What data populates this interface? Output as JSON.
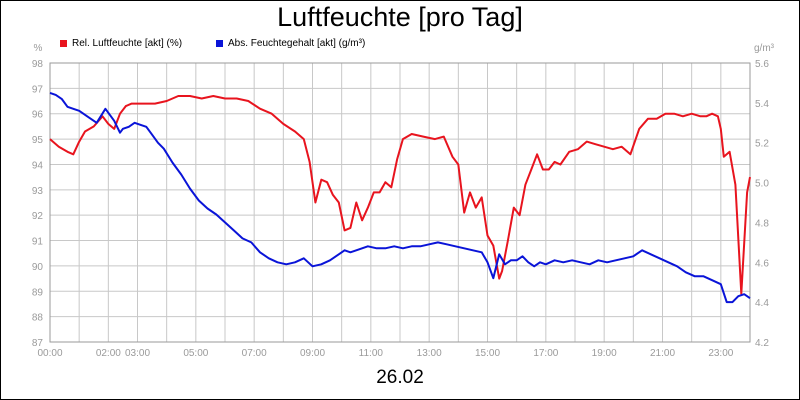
{
  "title": "Luftfeuchte [pro Tag]",
  "footer": "26.02",
  "colors": {
    "rel": "#e8141e",
    "abs": "#0a14d8",
    "grid": "#c8c8c8",
    "tick": "#9a9a9a"
  },
  "chart_data": {
    "type": "line",
    "title": "Luftfeuchte [pro Tag]",
    "xlabel": "26.02",
    "x_ticks": [
      "00:00",
      "02:00",
      "03:00",
      "05:00",
      "07:00",
      "09:00",
      "11:00",
      "13:00",
      "15:00",
      "17:00",
      "19:00",
      "21:00",
      "23:00"
    ],
    "x_tick_hours": [
      0,
      2,
      3,
      5,
      7,
      9,
      11,
      13,
      15,
      17,
      19,
      21,
      23
    ],
    "xlim": [
      0,
      24
    ],
    "y_left": {
      "unit": "%",
      "ylim": [
        87,
        98
      ],
      "ticks": [
        87,
        88,
        89,
        90,
        91,
        92,
        93,
        94,
        95,
        96,
        97,
        98
      ]
    },
    "y_right": {
      "unit": "g/m³",
      "ylim": [
        4.2,
        5.6
      ],
      "ticks": [
        "4.2",
        "4.4",
        "4.6",
        "4.8",
        "5.0",
        "5.2",
        "5.4",
        "5.6"
      ]
    },
    "grid": true,
    "legend_position": "top-left",
    "series": [
      {
        "name": "Rel. Luftfeuchte [akt] (%)",
        "axis": "left",
        "x": [
          0,
          0.3,
          0.6,
          0.8,
          1.0,
          1.2,
          1.5,
          1.8,
          2.0,
          2.2,
          2.4,
          2.6,
          2.8,
          3.0,
          3.3,
          3.6,
          4.0,
          4.4,
          4.8,
          5.2,
          5.6,
          6.0,
          6.4,
          6.8,
          7.2,
          7.6,
          8.0,
          8.4,
          8.7,
          8.9,
          9.1,
          9.3,
          9.5,
          9.7,
          9.9,
          10.1,
          10.3,
          10.5,
          10.7,
          10.9,
          11.1,
          11.3,
          11.5,
          11.7,
          11.9,
          12.1,
          12.4,
          12.8,
          13.2,
          13.5,
          13.8,
          14.0,
          14.2,
          14.4,
          14.6,
          14.8,
          15.0,
          15.2,
          15.4,
          15.5,
          15.7,
          15.9,
          16.1,
          16.3,
          16.5,
          16.7,
          16.9,
          17.1,
          17.3,
          17.5,
          17.8,
          18.1,
          18.4,
          18.7,
          19.0,
          19.3,
          19.6,
          19.9,
          20.2,
          20.5,
          20.8,
          21.1,
          21.4,
          21.7,
          22.0,
          22.3,
          22.5,
          22.7,
          22.9,
          23.0,
          23.1,
          23.3,
          23.5,
          23.7,
          23.9,
          24.0
        ],
        "values": [
          95.0,
          94.7,
          94.5,
          94.4,
          94.9,
          95.3,
          95.5,
          95.9,
          95.6,
          95.4,
          96.0,
          96.3,
          96.4,
          96.4,
          96.4,
          96.4,
          96.5,
          96.7,
          96.7,
          96.6,
          96.7,
          96.6,
          96.6,
          96.5,
          96.2,
          96.0,
          95.6,
          95.3,
          95.0,
          94.1,
          92.5,
          93.4,
          93.3,
          92.8,
          92.5,
          91.4,
          91.5,
          92.5,
          91.8,
          92.3,
          92.9,
          92.9,
          93.3,
          93.1,
          94.2,
          95.0,
          95.2,
          95.1,
          95.0,
          95.1,
          94.3,
          94.0,
          92.1,
          92.9,
          92.3,
          92.7,
          91.2,
          90.8,
          89.5,
          89.8,
          91.0,
          92.3,
          92.0,
          93.2,
          93.8,
          94.4,
          93.8,
          93.8,
          94.1,
          94.0,
          94.5,
          94.6,
          94.9,
          94.8,
          94.7,
          94.6,
          94.7,
          94.4,
          95.4,
          95.8,
          95.8,
          96.0,
          96.0,
          95.9,
          96.0,
          95.9,
          95.9,
          96.0,
          95.9,
          95.4,
          94.3,
          94.5,
          93.2,
          88.9,
          92.9,
          93.5
        ],
        "color": "#e8141e"
      },
      {
        "name": "Abs. Feuchtegehalt [akt] (g/m³)",
        "axis": "right",
        "x": [
          0,
          0.2,
          0.4,
          0.6,
          0.8,
          1.0,
          1.3,
          1.6,
          1.9,
          2.2,
          2.4,
          2.5,
          2.7,
          2.9,
          3.1,
          3.3,
          3.5,
          3.7,
          3.9,
          4.2,
          4.5,
          4.8,
          5.1,
          5.4,
          5.7,
          6.0,
          6.3,
          6.6,
          6.9,
          7.2,
          7.5,
          7.8,
          8.1,
          8.4,
          8.7,
          9.0,
          9.3,
          9.6,
          9.9,
          10.1,
          10.3,
          10.5,
          10.7,
          10.9,
          11.2,
          11.5,
          11.8,
          12.1,
          12.4,
          12.7,
          13.0,
          13.3,
          13.6,
          13.9,
          14.2,
          14.5,
          14.8,
          15.0,
          15.2,
          15.4,
          15.6,
          15.8,
          16.0,
          16.2,
          16.4,
          16.6,
          16.8,
          17.0,
          17.3,
          17.6,
          17.9,
          18.2,
          18.5,
          18.8,
          19.1,
          19.4,
          19.7,
          20.0,
          20.3,
          20.6,
          20.9,
          21.2,
          21.5,
          21.8,
          22.1,
          22.4,
          22.7,
          23.0,
          23.2,
          23.4,
          23.6,
          23.8,
          24.0
        ],
        "values": [
          5.45,
          5.44,
          5.42,
          5.38,
          5.37,
          5.36,
          5.33,
          5.3,
          5.37,
          5.31,
          5.25,
          5.27,
          5.28,
          5.3,
          5.29,
          5.28,
          5.24,
          5.2,
          5.17,
          5.1,
          5.04,
          4.97,
          4.91,
          4.87,
          4.84,
          4.8,
          4.76,
          4.72,
          4.7,
          4.65,
          4.62,
          4.6,
          4.59,
          4.6,
          4.62,
          4.58,
          4.59,
          4.61,
          4.64,
          4.66,
          4.65,
          4.66,
          4.67,
          4.68,
          4.67,
          4.67,
          4.68,
          4.67,
          4.68,
          4.68,
          4.69,
          4.7,
          4.69,
          4.68,
          4.67,
          4.66,
          4.65,
          4.6,
          4.52,
          4.64,
          4.59,
          4.61,
          4.61,
          4.63,
          4.6,
          4.58,
          4.6,
          4.59,
          4.61,
          4.6,
          4.61,
          4.6,
          4.59,
          4.61,
          4.6,
          4.61,
          4.62,
          4.63,
          4.66,
          4.64,
          4.62,
          4.6,
          4.58,
          4.55,
          4.53,
          4.53,
          4.51,
          4.49,
          4.4,
          4.4,
          4.43,
          4.44,
          4.42
        ],
        "color": "#0a14d8"
      }
    ]
  }
}
